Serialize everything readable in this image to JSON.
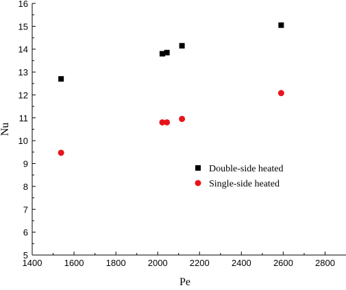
{
  "chart_data": {
    "type": "scatter",
    "xlabel": "Pe",
    "ylabel": "Nu",
    "xlim": [
      1400,
      2900
    ],
    "ylim": [
      5,
      16
    ],
    "xticks": [
      1400,
      1600,
      1800,
      2000,
      2200,
      2400,
      2600,
      2800
    ],
    "yticks": [
      5,
      6,
      7,
      8,
      9,
      10,
      11,
      12,
      13,
      14,
      15,
      16
    ],
    "grid": false,
    "legend": "center-right",
    "series": [
      {
        "name": "Double-side heated",
        "marker": "square",
        "color": "#000000",
        "points": [
          {
            "x": 1538,
            "y": 12.7
          },
          {
            "x": 2022,
            "y": 13.8
          },
          {
            "x": 2044,
            "y": 13.85
          },
          {
            "x": 2116,
            "y": 14.15
          },
          {
            "x": 2590,
            "y": 15.05
          }
        ]
      },
      {
        "name": "Single-side heated",
        "marker": "circle",
        "color": "#e8141b",
        "points": [
          {
            "x": 1538,
            "y": 9.47
          },
          {
            "x": 2022,
            "y": 10.8
          },
          {
            "x": 2044,
            "y": 10.8
          },
          {
            "x": 2116,
            "y": 10.95
          },
          {
            "x": 2590,
            "y": 12.08
          }
        ]
      }
    ]
  }
}
